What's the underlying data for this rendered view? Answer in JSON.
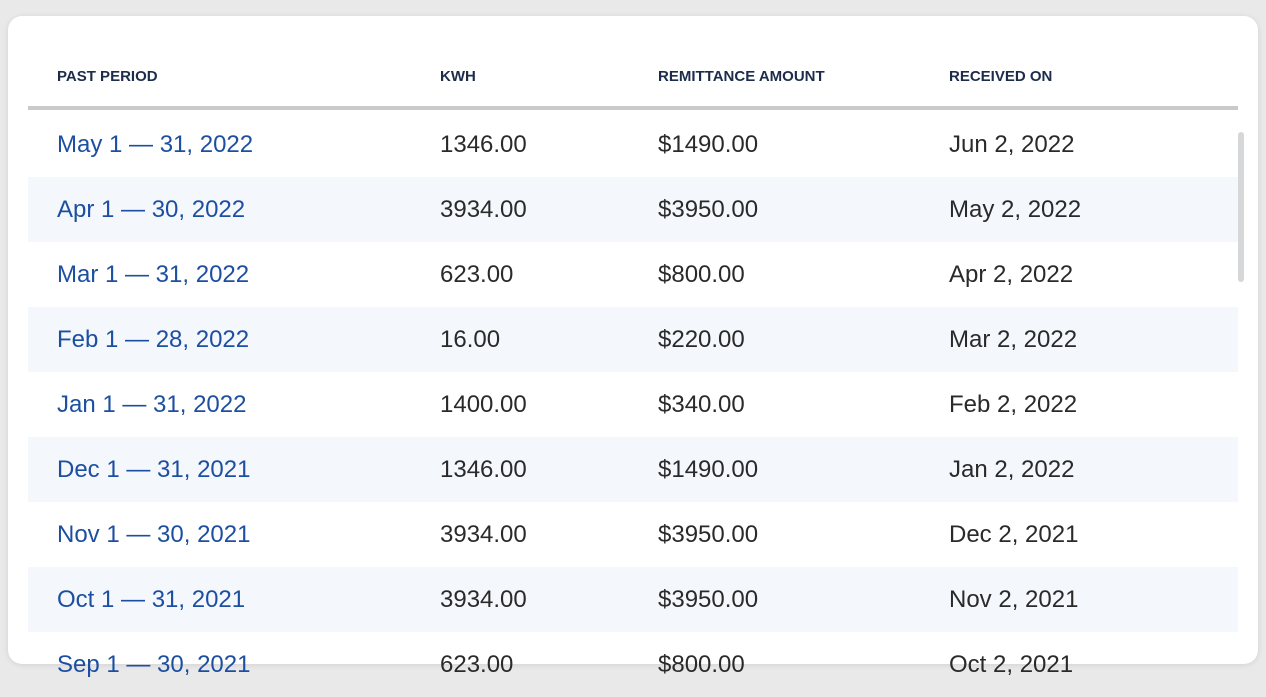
{
  "table": {
    "columns": [
      "PAST PERIOD",
      "KWH",
      "REMITTANCE AMOUNT",
      "RECEIVED ON"
    ],
    "rows": [
      [
        "May 1 — 31, 2022",
        "1346.00",
        "$1490.00",
        "Jun 2, 2022"
      ],
      [
        "Apr 1 — 30, 2022",
        "3934.00",
        "$3950.00",
        "May 2, 2022"
      ],
      [
        "Mar 1 — 31, 2022",
        "623.00",
        "$800.00",
        "Apr 2, 2022"
      ],
      [
        "Feb 1 — 28, 2022",
        "16.00",
        "$220.00",
        "Mar 2, 2022"
      ],
      [
        "Jan 1 — 31, 2022",
        "1400.00",
        "$340.00",
        "Feb 2, 2022"
      ],
      [
        "Dec 1 — 31, 2021",
        "1346.00",
        "$1490.00",
        "Jan 2, 2022"
      ],
      [
        "Nov 1 — 30, 2021",
        "3934.00",
        "$3950.00",
        "Dec 2, 2021"
      ],
      [
        "Oct 1 — 31, 2021",
        "3934.00",
        "$3950.00",
        "Nov 2, 2021"
      ],
      [
        "Sep 1 — 30, 2021",
        "623.00",
        "$800.00",
        "Oct 2, 2021"
      ]
    ]
  },
  "colors": {
    "link": "#1d4fa1",
    "header_text": "#1c2c4a",
    "alt_row": "#f4f7fc"
  }
}
